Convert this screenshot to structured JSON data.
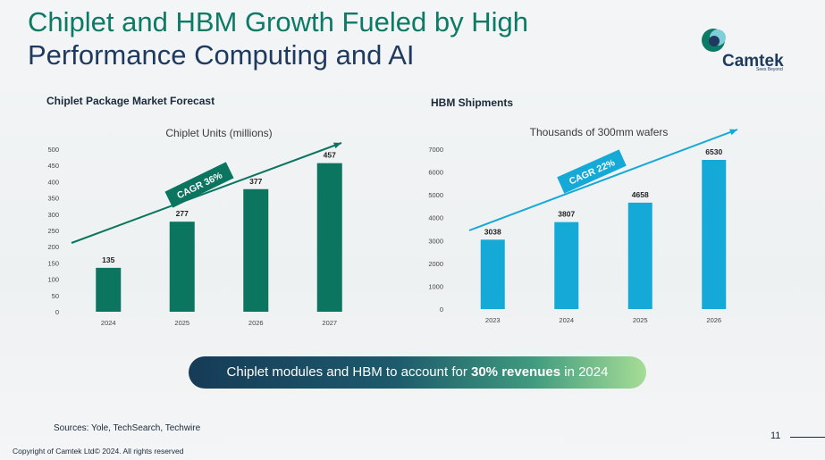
{
  "slide": {
    "title_line1": "Chiplet and HBM Growth Fueled by High",
    "title_line2": "Performance Computing and AI",
    "logo_text": "Camtek",
    "logo_tagline": "Sees Beyond",
    "banner_prefix": "Chiplet modules and HBM to account for ",
    "banner_bold": "30% revenues",
    "banner_suffix": " in 2024",
    "sources": "Sources:  Yole, TechSearch, Techwire",
    "copyright": "Copyright of Camtek Ltd© 2024. All rights reserved",
    "page_number": "11",
    "colors": {
      "title_green": "#0d7a66",
      "title_navy": "#1f3a5e",
      "chiplet_bar": "#0b7560",
      "hbm_bar": "#14a9d6"
    }
  },
  "chart_data": [
    {
      "type": "bar",
      "heading": "Chiplet Package Market Forecast",
      "title": "Chiplet Units (millions)",
      "categories": [
        "2024",
        "2025",
        "2026",
        "2027"
      ],
      "values": [
        135,
        277,
        377,
        457
      ],
      "ylim": [
        0,
        500
      ],
      "yticks": [
        0,
        50,
        100,
        150,
        200,
        250,
        300,
        350,
        400,
        450,
        500
      ],
      "annotation": "CAGR 36%",
      "grid": false,
      "color": "#0b7560"
    },
    {
      "type": "bar",
      "heading": "HBM Shipments",
      "title": "Thousands of 300mm wafers",
      "categories": [
        "2023",
        "2024",
        "2025",
        "2026"
      ],
      "values": [
        3038,
        3807,
        4658,
        6530
      ],
      "ylim": [
        0,
        7000
      ],
      "yticks": [
        0,
        1000,
        2000,
        3000,
        4000,
        5000,
        6000,
        7000
      ],
      "annotation": "CAGR 22%",
      "grid": false,
      "color": "#14a9d6"
    }
  ]
}
